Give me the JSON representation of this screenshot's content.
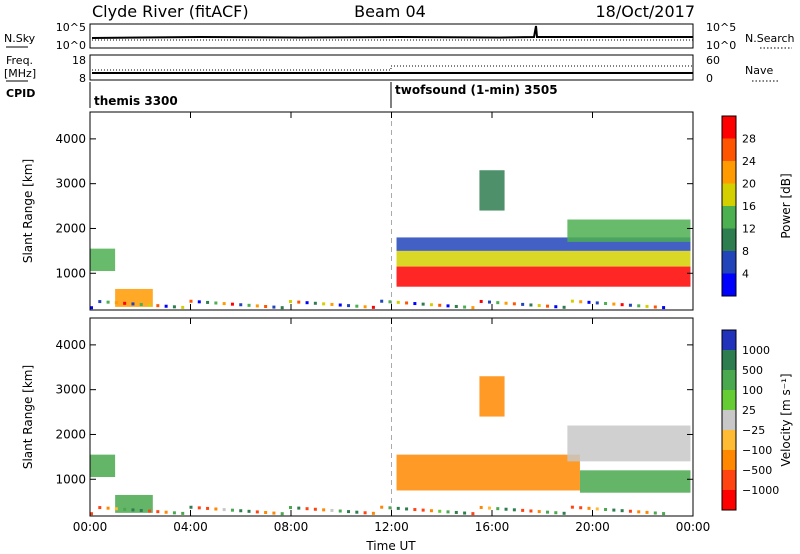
{
  "header": {
    "station": "Clyde River (fitACF)",
    "beam": "Beam 04",
    "date": "18/Oct/2017"
  },
  "summary_panels": {
    "nsky_label": "N.Sky",
    "nsearch_label": "N.Search",
    "nsky_ticks": [
      "10^5",
      "10^0"
    ],
    "freq_label_line1": "Freq.",
    "freq_label_line2": "[MHz]",
    "freq_ticks": [
      "18",
      "8"
    ],
    "nave_label": "Nave",
    "nave_ticks": [
      "60",
      "0"
    ],
    "cpid_label": "CPID"
  },
  "cpid_segments": [
    {
      "label": "themis 3300",
      "start_hour": 0
    },
    {
      "label": "twofsound (1-min) 3505",
      "start_hour": 12
    }
  ],
  "colors": {
    "power_scale": [
      "#0000ff",
      "#2244bb",
      "#2e7d4f",
      "#4caf50",
      "#d4d000",
      "#ff9a00",
      "#ff5500",
      "#ff0000"
    ],
    "velocity_scale": [
      "#2233bb",
      "#2e7d4f",
      "#4aa84f",
      "#66cc33",
      "#c8c8c8",
      "#ffbb33",
      "#ff8800",
      "#ff4411",
      "#ff0000"
    ]
  },
  "chart_data": [
    {
      "type": "heatmap",
      "panel": "power",
      "xlabel": "",
      "ylabel": "Slant Range [km]",
      "x_ticks": [
        "00:00",
        "04:00",
        "08:00",
        "12:00",
        "16:00",
        "20:00",
        "00:00"
      ],
      "y_ticks": [
        "1000",
        "2000",
        "3000",
        "4000"
      ],
      "xlim_hours": [
        0,
        24
      ],
      "ylim_km": [
        180,
        4600
      ],
      "colorbar_label": "Power [dB]",
      "colorbar_ticks": [
        "4",
        "8",
        "12",
        "16",
        "20",
        "24",
        "28"
      ],
      "colorbar_range": [
        0,
        30
      ],
      "regions": [
        {
          "t0": 0.0,
          "t1": 1.0,
          "r0": 1050,
          "r1": 1550,
          "v": 14
        },
        {
          "t0": 1.0,
          "t1": 2.5,
          "r0": 250,
          "r1": 650,
          "v": 20
        },
        {
          "t0": 12.2,
          "t1": 23.9,
          "r0": 700,
          "r1": 1150,
          "v": 28
        },
        {
          "t0": 12.2,
          "t1": 23.9,
          "r0": 1150,
          "r1": 1500,
          "v": 18
        },
        {
          "t0": 12.2,
          "t1": 23.9,
          "r0": 1500,
          "r1": 1800,
          "v": 6
        },
        {
          "t0": 19.0,
          "t1": 23.9,
          "r0": 1700,
          "r1": 2200,
          "v": 12
        },
        {
          "t0": 15.5,
          "t1": 16.5,
          "r0": 2400,
          "r1": 3300,
          "v": 10
        }
      ]
    },
    {
      "type": "heatmap",
      "panel": "velocity",
      "xlabel": "Time UT",
      "ylabel": "Slant Range [km]",
      "x_ticks": [
        "00:00",
        "04:00",
        "08:00",
        "12:00",
        "16:00",
        "20:00",
        "00:00"
      ],
      "y_ticks": [
        "1000",
        "2000",
        "3000",
        "4000"
      ],
      "xlim_hours": [
        0,
        24
      ],
      "ylim_km": [
        180,
        4600
      ],
      "colorbar_label": "Velocity [m s⁻¹]",
      "colorbar_ticks": [
        "1000",
        "500",
        "100",
        "25",
        "−25",
        "−100",
        "−500",
        "−1000"
      ],
      "colorbar_range": [
        -1000,
        1000
      ],
      "regions": [
        {
          "t0": 0.0,
          "t1": 1.0,
          "r0": 1050,
          "r1": 1550,
          "v": 150
        },
        {
          "t0": 1.0,
          "t1": 2.5,
          "r0": 250,
          "r1": 650,
          "v": 200
        },
        {
          "t0": 12.2,
          "t1": 19.5,
          "r0": 750,
          "r1": 1550,
          "v": -300
        },
        {
          "t0": 19.5,
          "t1": 23.9,
          "r0": 700,
          "r1": 1200,
          "v": 300
        },
        {
          "t0": 19.0,
          "t1": 23.9,
          "r0": 1400,
          "r1": 2200,
          "v": 0
        },
        {
          "t0": 15.5,
          "t1": 16.5,
          "r0": 2400,
          "r1": 3300,
          "v": -200
        }
      ]
    }
  ]
}
